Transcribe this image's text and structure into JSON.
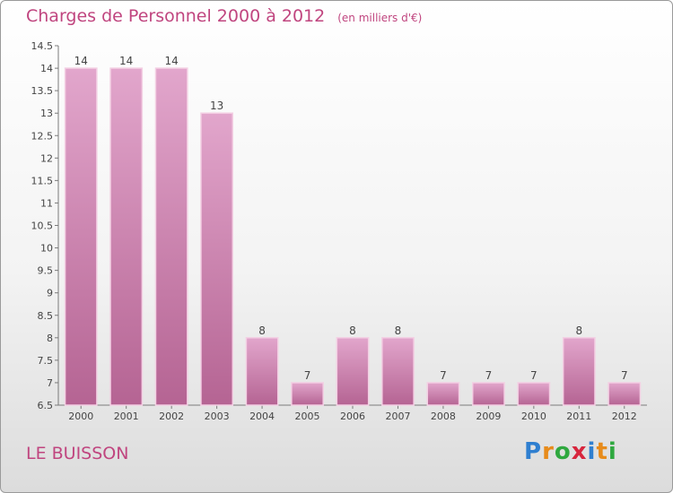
{
  "title": "Charges de Personnel 2000 à 2012",
  "unit": "(en milliers d'€)",
  "location": "LE BUISSON",
  "logo": {
    "letters": [
      "P",
      "r",
      "o",
      "x",
      "i",
      "t",
      "i"
    ],
    "colors": [
      "#2f7fd0",
      "#e78b1b",
      "#2fa83f",
      "#d7263d",
      "#2f7fd0",
      "#e78b1b",
      "#2fa83f"
    ]
  },
  "colors": {
    "bar_top": "#e2a6cc",
    "bar_bottom": "#b56493",
    "text": "#c0457f"
  },
  "chart_data": {
    "type": "bar",
    "categories": [
      "2000",
      "2001",
      "2002",
      "2003",
      "2004",
      "2005",
      "2006",
      "2007",
      "2008",
      "2009",
      "2010",
      "2011",
      "2012"
    ],
    "values": [
      14,
      14,
      14,
      13,
      8,
      7,
      8,
      8,
      7,
      7,
      7,
      8,
      7
    ],
    "title": "Charges de Personnel 2000 à 2012",
    "ylim": [
      6.5,
      14.5
    ],
    "yticks": [
      "6.5",
      "7",
      "7.5",
      "8",
      "8.5",
      "9",
      "9.5",
      "10",
      "10.5",
      "11",
      "11.5",
      "12",
      "12.5",
      "13",
      "13.5",
      "14",
      "14.5"
    ],
    "grid": false,
    "data_labels": true
  }
}
